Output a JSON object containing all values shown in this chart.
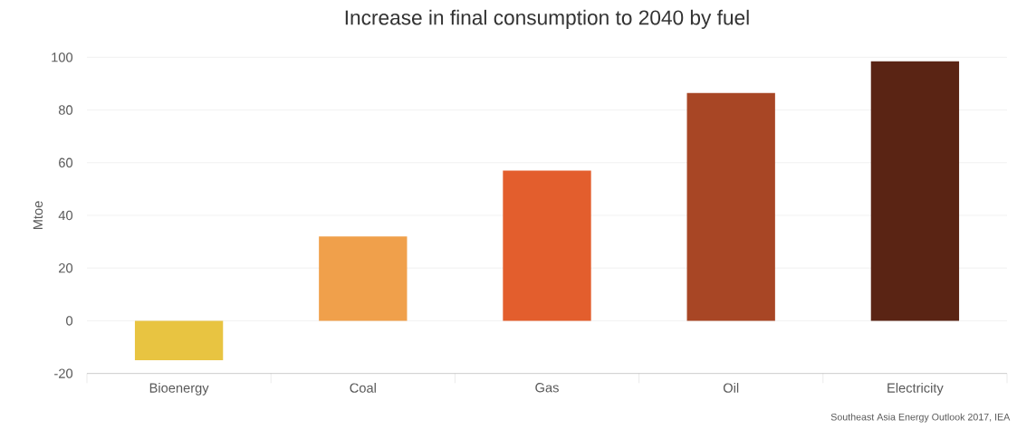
{
  "chart_data": {
    "type": "bar",
    "title": "Increase in final consumption to 2040 by fuel",
    "ylabel": "Mtoe",
    "categories": [
      "Bioenergy",
      "Coal",
      "Gas",
      "Oil",
      "Electricity"
    ],
    "values": [
      -15,
      32,
      57,
      86.5,
      98.5
    ],
    "colors": [
      "#e8c441",
      "#f0a04b",
      "#e35e2d",
      "#a84625",
      "#5a2414"
    ],
    "ylim": [
      -20,
      100
    ],
    "yticks": [
      -20,
      0,
      20,
      40,
      60,
      80,
      100
    ],
    "grid": "y",
    "annotations": [
      "Southeast Asia Energy Outlook 2017, IEA"
    ]
  }
}
